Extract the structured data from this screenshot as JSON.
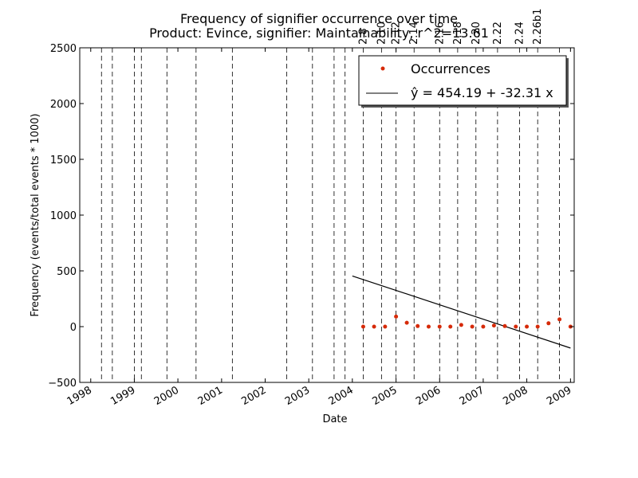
{
  "chart_data": {
    "type": "scatter",
    "title": "Frequency of signifier occurrence over time",
    "subtitle": "Product: Evince, signifier: Maintainability, r^2=13.61",
    "xlabel": "Date",
    "ylabel": "Frequency (events/total events * 1000)",
    "xlim": [
      "1997-10-01",
      "2009-02-01"
    ],
    "ylim": [
      -500,
      2500
    ],
    "yticks": [
      -500,
      0,
      500,
      1000,
      1500,
      2000,
      2500
    ],
    "ytick_labels": [
      "−500",
      "0",
      "500",
      "1000",
      "1500",
      "2000",
      "2500"
    ],
    "xticks": [
      "1998-01-01",
      "1999-01-01",
      "2000-01-01",
      "2001-01-01",
      "2002-01-01",
      "2003-01-01",
      "2004-01-01",
      "2005-01-01",
      "2006-01-01",
      "2007-01-01",
      "2008-01-01",
      "2009-01-01"
    ],
    "xtick_labels": [
      "1998",
      "1999",
      "2000",
      "2001",
      "2002",
      "2003",
      "2004",
      "2005",
      "2006",
      "2007",
      "2008",
      "2009"
    ],
    "grid": false,
    "legend": {
      "position": "top-right",
      "entries": [
        {
          "label": "Occurrences",
          "marker": "dot",
          "color": "#d62a08"
        },
        {
          "label": "ŷ = 454.19 + -32.31 x",
          "marker": "line",
          "color": "#000000"
        }
      ]
    },
    "series": [
      {
        "name": "Occurrences",
        "color": "#d62a08",
        "x": [
          "2004-04-01",
          "2004-07-01",
          "2004-10-01",
          "2005-01-01",
          "2005-04-01",
          "2005-07-01",
          "2005-10-01",
          "2006-01-01",
          "2006-04-01",
          "2006-07-01",
          "2006-10-01",
          "2007-01-01",
          "2007-04-01",
          "2007-07-01",
          "2007-10-01",
          "2008-01-01",
          "2008-04-01",
          "2008-07-01",
          "2008-10-01",
          "2009-01-01"
        ],
        "y": [
          0,
          0,
          0,
          90,
          35,
          5,
          0,
          0,
          0,
          15,
          0,
          0,
          10,
          5,
          0,
          0,
          0,
          30,
          65,
          0
        ]
      }
    ],
    "fit_line": {
      "label": "ŷ = 454.19 + -32.31 x",
      "color": "#000000",
      "x": [
        "2004-01-01",
        "2009-01-01"
      ],
      "y": [
        454.19,
        -192.01
      ]
    },
    "release_markers": {
      "x": [
        "1998-04-01",
        "1998-07-01",
        "1999-01-01",
        "1999-03-01",
        "1999-10-01",
        "2000-06-01",
        "2001-04-01",
        "2002-07-01",
        "2003-02-01",
        "2003-08-01",
        "2003-11-01",
        "2004-04-01",
        "2004-09-01",
        "2005-01-01",
        "2005-06-01",
        "2006-01-01",
        "2006-06-01",
        "2006-11-01",
        "2007-05-01",
        "2007-11-01",
        "2008-04-01",
        "2008-10-01"
      ],
      "labels": [
        "",
        "",
        "",
        "",
        "",
        "",
        "",
        "",
        "",
        "",
        "",
        "2.8",
        "2.10",
        "2.12",
        "2.14",
        "2.16",
        "2.18",
        "2.20",
        "2.22",
        "2.24",
        "2.26b1",
        ""
      ]
    }
  }
}
